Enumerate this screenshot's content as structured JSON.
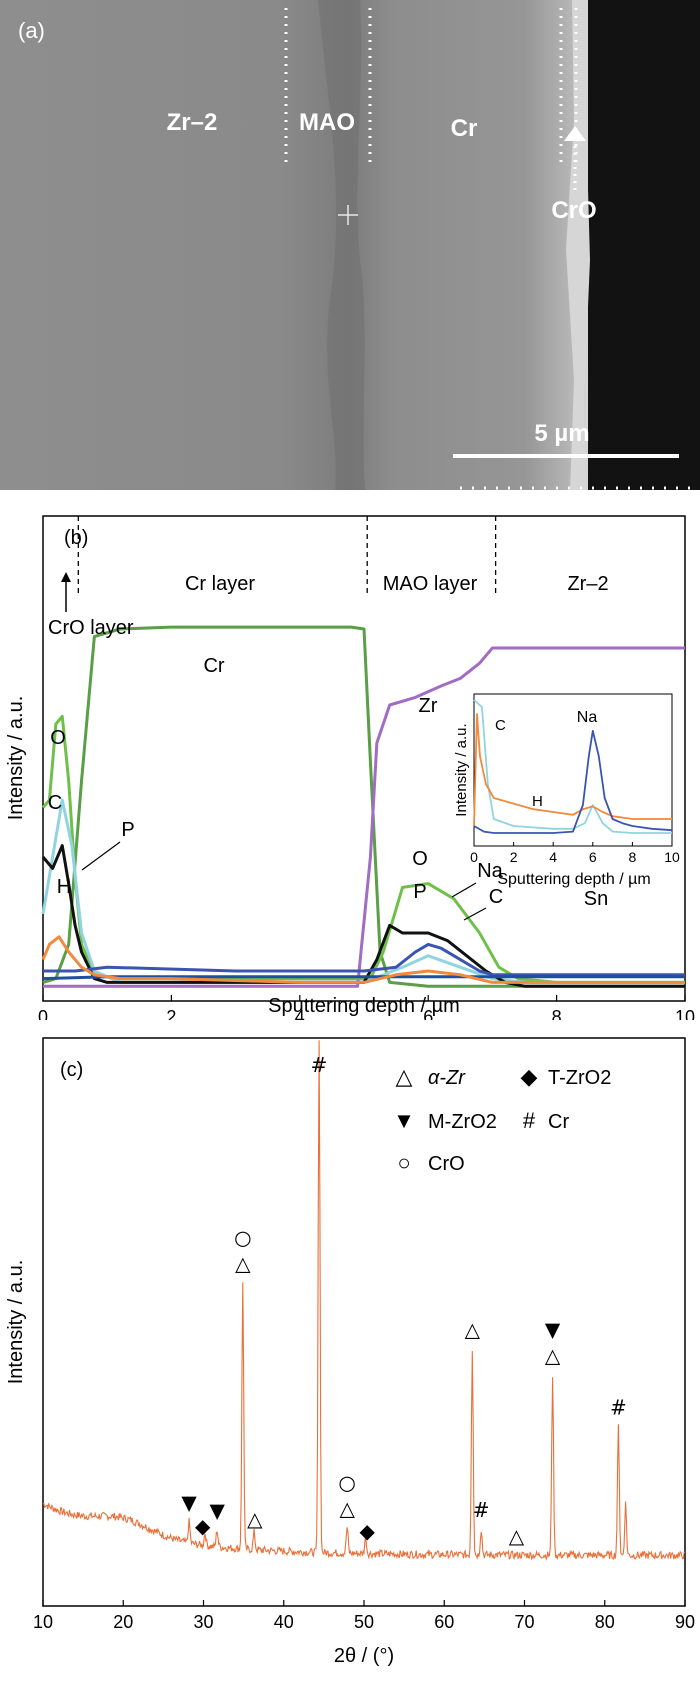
{
  "figure_a": {
    "panel_label": "(a)",
    "labels": {
      "zr2": "Zr–2",
      "mao": "MAO",
      "cr": "Cr",
      "cro": "CrO"
    },
    "scale_bar": "5 µm"
  },
  "chart_data": [
    {
      "type": "line",
      "panel_label": "(b)",
      "xlabel": "Sputtering depth / µm",
      "ylabel": "Intensity / a.u.",
      "xlim": [
        0,
        10
      ],
      "xticks": [
        "0",
        "2",
        "4",
        "6",
        "8",
        "10"
      ],
      "regions": {
        "cr_layer": "Cr layer",
        "mao_layer": "MAO layer",
        "zr2": "Zr–2",
        "cro_layer": "CrO layer"
      },
      "boundaries": [
        0.55,
        5.05,
        7.05
      ],
      "series": [
        {
          "name": "Cr",
          "color": "#5a9e46",
          "x": [
            0,
            0.2,
            0.4,
            0.6,
            0.8,
            1.2,
            2,
            3,
            4,
            4.8,
            5,
            5.1,
            5.25,
            5.4,
            6,
            8,
            10
          ],
          "y": [
            0.02,
            0.03,
            0.12,
            0.55,
            0.93,
            0.95,
            0.955,
            0.955,
            0.955,
            0.955,
            0.95,
            0.6,
            0.1,
            0.02,
            0.01,
            0.01,
            0.01
          ]
        },
        {
          "name": "Zr",
          "color": "#a06cc4",
          "x": [
            0,
            4.9,
            5.1,
            5.2,
            5.4,
            5.8,
            6.2,
            6.5,
            6.8,
            7,
            7.3,
            8,
            10
          ],
          "y": [
            0.01,
            0.01,
            0.35,
            0.65,
            0.75,
            0.77,
            0.8,
            0.82,
            0.86,
            0.9,
            0.9,
            0.9,
            0.9
          ]
        },
        {
          "name": "O",
          "color": "#6fc04a",
          "x": [
            0,
            0.1,
            0.2,
            0.3,
            0.4,
            0.5,
            0.6,
            0.8,
            1.2,
            2,
            4,
            5.1,
            5.3,
            5.6,
            6,
            6.4,
            6.8,
            7.1,
            7.4,
            8,
            10
          ],
          "y": [
            0.48,
            0.5,
            0.7,
            0.72,
            0.55,
            0.3,
            0.12,
            0.04,
            0.03,
            0.03,
            0.03,
            0.03,
            0.1,
            0.27,
            0.28,
            0.24,
            0.15,
            0.06,
            0.03,
            0.02,
            0.02
          ]
        },
        {
          "name": "C",
          "color": "#8fd4e0",
          "x": [
            0,
            0.15,
            0.3,
            0.45,
            0.6,
            0.8,
            1.2,
            2,
            5,
            5.6,
            6,
            6.5,
            7,
            7.5,
            10
          ],
          "y": [
            0.2,
            0.35,
            0.5,
            0.38,
            0.15,
            0.05,
            0.02,
            0.02,
            0.02,
            0.06,
            0.09,
            0.06,
            0.03,
            0.02,
            0.02
          ]
        },
        {
          "name": "P",
          "color": "#111111",
          "x": [
            0,
            0.15,
            0.3,
            0.4,
            0.5,
            0.6,
            0.8,
            1,
            2,
            5,
            5.2,
            5.4,
            5.6,
            6,
            6.3,
            6.6,
            6.9,
            7.2,
            7.5,
            10
          ],
          "y": [
            0.35,
            0.32,
            0.38,
            0.28,
            0.17,
            0.1,
            0.03,
            0.02,
            0.02,
            0.02,
            0.08,
            0.17,
            0.15,
            0.15,
            0.13,
            0.09,
            0.05,
            0.02,
            0.01,
            0.01
          ]
        },
        {
          "name": "Na",
          "color": "#3b54b0",
          "x": [
            0,
            0.5,
            1,
            3,
            5,
            5.5,
            5.8,
            6,
            6.2,
            6.5,
            6.8,
            7,
            8,
            10
          ],
          "y": [
            0.05,
            0.05,
            0.06,
            0.05,
            0.05,
            0.06,
            0.1,
            0.12,
            0.11,
            0.08,
            0.05,
            0.04,
            0.04,
            0.04
          ]
        },
        {
          "name": "Sn",
          "color": "#1f4fa0",
          "x": [
            0,
            1,
            2,
            4,
            5,
            6,
            7,
            8,
            10
          ],
          "y": [
            0.03,
            0.035,
            0.035,
            0.035,
            0.035,
            0.035,
            0.035,
            0.035,
            0.035
          ]
        },
        {
          "name": "H",
          "color": "#f08a3c",
          "x": [
            0,
            0.1,
            0.25,
            0.4,
            0.6,
            0.8,
            1.2,
            2,
            4,
            5,
            5.5,
            6,
            6.5,
            7,
            8,
            10
          ],
          "y": [
            0.08,
            0.12,
            0.14,
            0.1,
            0.06,
            0.04,
            0.03,
            0.03,
            0.02,
            0.02,
            0.04,
            0.05,
            0.04,
            0.02,
            0.02,
            0.02
          ]
        }
      ],
      "inset": {
        "xlabel": "Sputtering depth / µm",
        "ylabel": "Intensity / a.u.",
        "xlim": [
          0,
          10
        ],
        "xticks": [
          "0",
          "2",
          "4",
          "6",
          "8",
          "10"
        ],
        "series": [
          {
            "name": "C",
            "color": "#8fd4e0",
            "x": [
              0,
              0.4,
              0.7,
              1,
              2,
              4,
              5,
              5.6,
              6,
              6.5,
              7,
              8,
              10
            ],
            "y": [
              1,
              0.95,
              0.4,
              0.15,
              0.1,
              0.08,
              0.08,
              0.12,
              0.25,
              0.12,
              0.06,
              0.05,
              0.05
            ]
          },
          {
            "name": "H",
            "color": "#f08a3c",
            "x": [
              0,
              0.15,
              0.3,
              0.6,
              1,
              2,
              3,
              4,
              5,
              5.5,
              6,
              6.5,
              7,
              8,
              10
            ],
            "y": [
              0.1,
              0.9,
              0.6,
              0.4,
              0.3,
              0.26,
              0.22,
              0.2,
              0.18,
              0.22,
              0.24,
              0.2,
              0.17,
              0.15,
              0.15
            ]
          },
          {
            "name": "Na",
            "color": "#3b54b0",
            "x": [
              0,
              0.5,
              1,
              2,
              3,
              4,
              5,
              5.5,
              5.8,
              6,
              6.3,
              6.6,
              7,
              7.5,
              8,
              9,
              10
            ],
            "y": [
              0.1,
              0.06,
              0.05,
              0.05,
              0.05,
              0.05,
              0.06,
              0.25,
              0.6,
              0.78,
              0.6,
              0.3,
              0.15,
              0.12,
              0.1,
              0.08,
              0.07
            ]
          }
        ]
      }
    },
    {
      "type": "line",
      "panel_label": "(c)",
      "xlabel": "2θ / (°)",
      "ylabel": "Intensity / a.u.",
      "xlim": [
        10,
        90
      ],
      "xticks": [
        "10",
        "20",
        "30",
        "40",
        "50",
        "60",
        "70",
        "80",
        "90"
      ],
      "legend": [
        "α-Zr",
        "T-ZrO2",
        "M-ZrO2",
        "Cr",
        "CrO"
      ],
      "legend_symbols": [
        "△",
        "◆",
        "▼",
        "#",
        "○"
      ],
      "series": [
        {
          "name": "",
          "color": "#e8703a",
          "peaks": [
            [
              28.2,
              0.05
            ],
            [
              30.2,
              0.03
            ],
            [
              31.7,
              0.04
            ],
            [
              34.9,
              0.62
            ],
            [
              36.3,
              0.04
            ],
            [
              44.4,
              1.2
            ],
            [
              47.9,
              0.06
            ],
            [
              50.2,
              0.04
            ],
            [
              63.5,
              0.48
            ],
            [
              64.6,
              0.06
            ],
            [
              73.5,
              0.42
            ],
            [
              81.7,
              0.3
            ],
            [
              82.6,
              0.12
            ]
          ]
        }
      ],
      "annotations": [
        {
          "x": 28.2,
          "symbol": "▼"
        },
        {
          "x": 29.9,
          "symbol": "◆"
        },
        {
          "x": 31.7,
          "symbol": "▼"
        },
        {
          "x": 34.9,
          "symbol": "△"
        },
        {
          "x": 34.9,
          "symbol": "○"
        },
        {
          "x": 36.4,
          "symbol": "△"
        },
        {
          "x": 44.4,
          "symbol": "#"
        },
        {
          "x": 47.9,
          "symbol": "△"
        },
        {
          "x": 47.9,
          "symbol": "○"
        },
        {
          "x": 50.4,
          "symbol": "◆"
        },
        {
          "x": 63.5,
          "symbol": "△"
        },
        {
          "x": 64.6,
          "symbol": "#"
        },
        {
          "x": 69,
          "symbol": "△"
        },
        {
          "x": 73.5,
          "symbol": "△"
        },
        {
          "x": 73.5,
          "symbol": "▼"
        },
        {
          "x": 81.7,
          "symbol": "#"
        }
      ]
    }
  ]
}
